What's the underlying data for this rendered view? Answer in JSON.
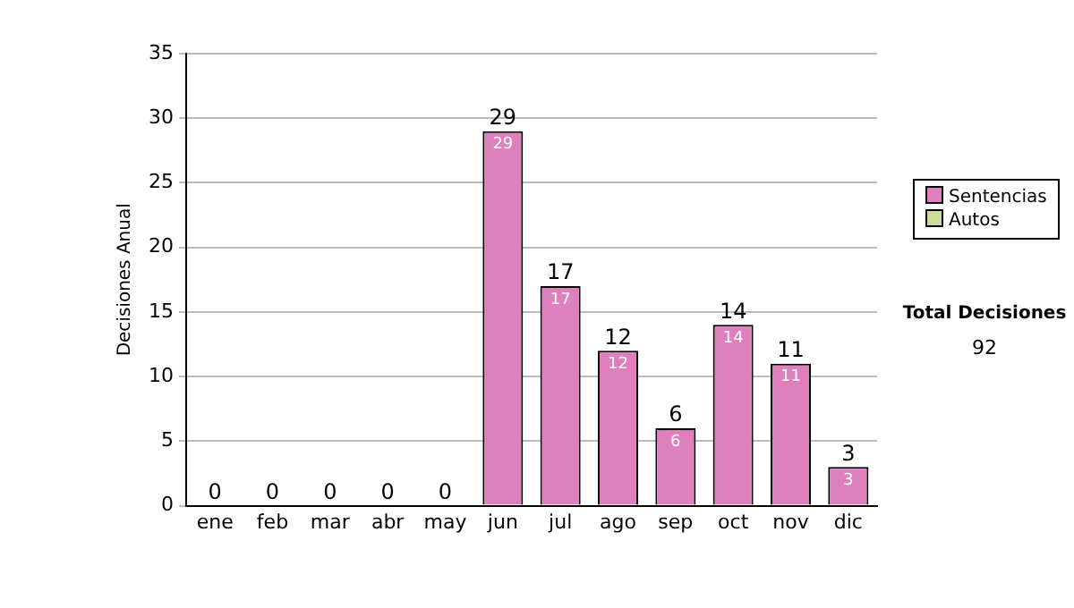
{
  "chart_data": {
    "type": "bar",
    "ylabel": "Decisiones Anual",
    "categories": [
      "ene",
      "feb",
      "mar",
      "abr",
      "may",
      "jun",
      "jul",
      "ago",
      "sep",
      "oct",
      "nov",
      "dic"
    ],
    "stacked": true,
    "series": [
      {
        "name": "Sentencias",
        "color": "#dd80bd",
        "values": [
          0,
          0,
          0,
          0,
          0,
          29,
          17,
          12,
          6,
          14,
          11,
          3
        ],
        "value_labels": [
          null,
          null,
          null,
          null,
          null,
          "29",
          "17",
          "12",
          "6",
          "14",
          "11",
          "3"
        ]
      },
      {
        "name": "Autos",
        "color": "#ccdd99",
        "values": [
          0,
          0,
          0,
          0,
          0,
          0,
          0,
          0,
          0,
          0,
          0,
          0
        ]
      }
    ],
    "totals": [
      "0",
      "0",
      "0",
      "0",
      "0",
      "29",
      "17",
      "12",
      "6",
      "14",
      "11",
      "3"
    ],
    "ylim": [
      0,
      35
    ],
    "yticks": [
      0,
      5,
      10,
      15,
      20,
      25,
      30,
      35
    ],
    "grid": "y",
    "legend": "right",
    "annotations": [
      "Total Decisiones",
      "92"
    ]
  }
}
